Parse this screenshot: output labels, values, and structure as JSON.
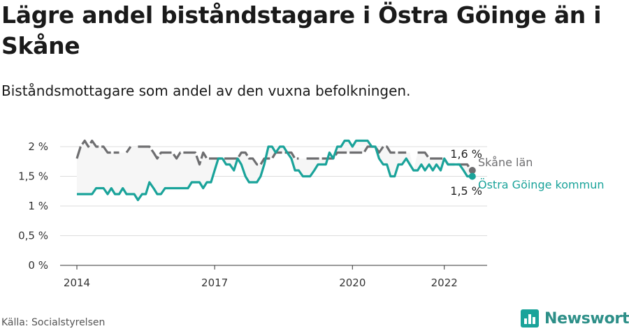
{
  "header": {
    "title": "Lägre andel biståndstagare i Östra Göinge än i Skåne",
    "subtitle": "Biståndsmottagare som andel av den vuxna befolkningen."
  },
  "footer": {
    "source": "Källa: Socialstyrelsen",
    "brand": "Newsworthy",
    "brand_icon": "bar-chart-icon"
  },
  "colors": {
    "skane": "#6e6e70",
    "gainge": "#1aa39a",
    "grid": "#dddddd",
    "band": "#f6f6f6"
  },
  "chart_data": {
    "type": "line",
    "x_unit": "year",
    "xlim": [
      2014,
      2022.75
    ],
    "ylim": [
      0,
      2
    ],
    "y_ticks": [
      "0 %",
      "0,5 %",
      "1 %",
      "1,5 %",
      "2 %"
    ],
    "y_tick_values": [
      0,
      0.5,
      1,
      1.5,
      2
    ],
    "x_ticks": [
      "2014",
      "2017",
      "2020",
      "2022"
    ],
    "x_tick_values": [
      2014,
      2017,
      2020,
      2022
    ],
    "series": [
      {
        "name": "Skåne län",
        "end_label": "1,6 %",
        "color": "#6e6e70",
        "dashed": true,
        "points": [
          [
            2014.0,
            1.8
          ],
          [
            2014.08,
            2.0
          ],
          [
            2014.17,
            2.1
          ],
          [
            2014.25,
            2.0
          ],
          [
            2014.33,
            2.1
          ],
          [
            2014.42,
            2.0
          ],
          [
            2014.5,
            2.0
          ],
          [
            2014.58,
            2.0
          ],
          [
            2014.67,
            1.9
          ],
          [
            2014.75,
            1.9
          ],
          [
            2014.83,
            1.9
          ],
          [
            2014.92,
            1.9
          ],
          [
            2015.0,
            null
          ],
          [
            2015.08,
            1.9
          ],
          [
            2015.17,
            2.0
          ],
          [
            2015.25,
            null
          ],
          [
            2015.33,
            2.0
          ],
          [
            2015.42,
            2.0
          ],
          [
            2015.5,
            2.0
          ],
          [
            2015.58,
            2.0
          ],
          [
            2015.67,
            1.9
          ],
          [
            2015.75,
            1.8
          ],
          [
            2015.83,
            1.9
          ],
          [
            2015.92,
            1.9
          ],
          [
            2016.0,
            1.9
          ],
          [
            2016.08,
            1.9
          ],
          [
            2016.17,
            1.8
          ],
          [
            2016.25,
            1.9
          ],
          [
            2016.33,
            1.9
          ],
          [
            2016.42,
            1.9
          ],
          [
            2016.5,
            1.9
          ],
          [
            2016.58,
            1.9
          ],
          [
            2016.67,
            1.7
          ],
          [
            2016.75,
            1.9
          ],
          [
            2016.83,
            1.8
          ],
          [
            2016.92,
            1.8
          ],
          [
            2017.0,
            1.8
          ],
          [
            2017.08,
            1.8
          ],
          [
            2017.17,
            1.8
          ],
          [
            2017.25,
            1.8
          ],
          [
            2017.33,
            1.8
          ],
          [
            2017.42,
            1.8
          ],
          [
            2017.5,
            1.8
          ],
          [
            2017.58,
            1.9
          ],
          [
            2017.67,
            1.9
          ],
          [
            2017.75,
            1.8
          ],
          [
            2017.83,
            1.8
          ],
          [
            2017.92,
            1.7
          ],
          [
            2018.0,
            1.7
          ],
          [
            2018.08,
            1.8
          ],
          [
            2018.17,
            1.8
          ],
          [
            2018.25,
            1.8
          ],
          [
            2018.33,
            1.9
          ],
          [
            2018.42,
            1.9
          ],
          [
            2018.5,
            1.9
          ],
          [
            2018.58,
            1.9
          ],
          [
            2018.67,
            1.9
          ],
          [
            2018.75,
            1.8
          ],
          [
            2018.83,
            1.8
          ],
          [
            2018.92,
            null
          ],
          [
            2019.0,
            1.8
          ],
          [
            2019.08,
            1.8
          ],
          [
            2019.17,
            1.8
          ],
          [
            2019.25,
            1.8
          ],
          [
            2019.33,
            1.8
          ],
          [
            2019.42,
            1.8
          ],
          [
            2019.5,
            1.8
          ],
          [
            2019.58,
            1.8
          ],
          [
            2019.67,
            1.9
          ],
          [
            2019.75,
            1.9
          ],
          [
            2019.83,
            1.9
          ],
          [
            2019.92,
            1.9
          ],
          [
            2020.0,
            1.9
          ],
          [
            2020.08,
            1.9
          ],
          [
            2020.17,
            1.9
          ],
          [
            2020.25,
            1.9
          ],
          [
            2020.33,
            2.0
          ],
          [
            2020.42,
            2.0
          ],
          [
            2020.5,
            2.0
          ],
          [
            2020.58,
            1.9
          ],
          [
            2020.67,
            2.0
          ],
          [
            2020.75,
            2.0
          ],
          [
            2020.83,
            1.9
          ],
          [
            2020.92,
            1.9
          ],
          [
            2021.0,
            1.9
          ],
          [
            2021.08,
            1.9
          ],
          [
            2021.17,
            1.9
          ],
          [
            2021.25,
            null
          ],
          [
            2021.33,
            null
          ],
          [
            2021.42,
            1.9
          ],
          [
            2021.5,
            1.9
          ],
          [
            2021.58,
            1.9
          ],
          [
            2021.67,
            1.8
          ],
          [
            2021.75,
            1.8
          ],
          [
            2021.83,
            1.8
          ],
          [
            2021.92,
            1.8
          ],
          [
            2022.0,
            1.8
          ],
          [
            2022.08,
            1.7
          ],
          [
            2022.17,
            1.7
          ],
          [
            2022.25,
            1.7
          ],
          [
            2022.33,
            1.7
          ],
          [
            2022.42,
            1.7
          ],
          [
            2022.5,
            1.7
          ],
          [
            2022.58,
            1.6
          ]
        ]
      },
      {
        "name": "Östra Göinge kommun",
        "end_label": "1,5 %",
        "color": "#1aa39a",
        "dashed": false,
        "points": [
          [
            2014.0,
            1.2
          ],
          [
            2014.08,
            1.2
          ],
          [
            2014.17,
            1.2
          ],
          [
            2014.25,
            1.2
          ],
          [
            2014.33,
            1.2
          ],
          [
            2014.42,
            1.3
          ],
          [
            2014.5,
            1.3
          ],
          [
            2014.58,
            1.3
          ],
          [
            2014.67,
            1.2
          ],
          [
            2014.75,
            1.3
          ],
          [
            2014.83,
            1.2
          ],
          [
            2014.92,
            1.2
          ],
          [
            2015.0,
            1.3
          ],
          [
            2015.08,
            1.2
          ],
          [
            2015.17,
            1.2
          ],
          [
            2015.25,
            1.2
          ],
          [
            2015.33,
            1.1
          ],
          [
            2015.42,
            1.2
          ],
          [
            2015.5,
            1.2
          ],
          [
            2015.58,
            1.4
          ],
          [
            2015.67,
            1.3
          ],
          [
            2015.75,
            1.2
          ],
          [
            2015.83,
            1.2
          ],
          [
            2015.92,
            1.3
          ],
          [
            2016.0,
            1.3
          ],
          [
            2016.08,
            1.3
          ],
          [
            2016.17,
            1.3
          ],
          [
            2016.25,
            1.3
          ],
          [
            2016.33,
            1.3
          ],
          [
            2016.42,
            1.3
          ],
          [
            2016.5,
            1.4
          ],
          [
            2016.58,
            1.4
          ],
          [
            2016.67,
            1.4
          ],
          [
            2016.75,
            1.3
          ],
          [
            2016.83,
            1.4
          ],
          [
            2016.92,
            1.4
          ],
          [
            2017.0,
            1.6
          ],
          [
            2017.08,
            1.8
          ],
          [
            2017.17,
            1.8
          ],
          [
            2017.25,
            1.7
          ],
          [
            2017.33,
            1.7
          ],
          [
            2017.42,
            1.6
          ],
          [
            2017.5,
            1.8
          ],
          [
            2017.58,
            1.7
          ],
          [
            2017.67,
            1.5
          ],
          [
            2017.75,
            1.4
          ],
          [
            2017.83,
            1.4
          ],
          [
            2017.92,
            1.4
          ],
          [
            2018.0,
            1.5
          ],
          [
            2018.08,
            1.7
          ],
          [
            2018.17,
            2.0
          ],
          [
            2018.25,
            2.0
          ],
          [
            2018.33,
            1.9
          ],
          [
            2018.42,
            2.0
          ],
          [
            2018.5,
            2.0
          ],
          [
            2018.58,
            1.9
          ],
          [
            2018.67,
            1.8
          ],
          [
            2018.75,
            1.6
          ],
          [
            2018.83,
            1.6
          ],
          [
            2018.92,
            1.5
          ],
          [
            2019.0,
            1.5
          ],
          [
            2019.08,
            1.5
          ],
          [
            2019.17,
            1.6
          ],
          [
            2019.25,
            1.7
          ],
          [
            2019.33,
            1.7
          ],
          [
            2019.42,
            1.7
          ],
          [
            2019.5,
            1.9
          ],
          [
            2019.58,
            1.8
          ],
          [
            2019.67,
            2.0
          ],
          [
            2019.75,
            2.0
          ],
          [
            2019.83,
            2.1
          ],
          [
            2019.92,
            2.1
          ],
          [
            2020.0,
            2.0
          ],
          [
            2020.08,
            2.1
          ],
          [
            2020.17,
            2.1
          ],
          [
            2020.25,
            2.1
          ],
          [
            2020.33,
            2.1
          ],
          [
            2020.42,
            2.0
          ],
          [
            2020.5,
            2.0
          ],
          [
            2020.58,
            1.8
          ],
          [
            2020.67,
            1.7
          ],
          [
            2020.75,
            1.7
          ],
          [
            2020.83,
            1.5
          ],
          [
            2020.92,
            1.5
          ],
          [
            2021.0,
            1.7
          ],
          [
            2021.08,
            1.7
          ],
          [
            2021.17,
            1.8
          ],
          [
            2021.25,
            1.7
          ],
          [
            2021.33,
            1.6
          ],
          [
            2021.42,
            1.6
          ],
          [
            2021.5,
            1.7
          ],
          [
            2021.58,
            1.6
          ],
          [
            2021.67,
            1.7
          ],
          [
            2021.75,
            1.6
          ],
          [
            2021.83,
            1.7
          ],
          [
            2021.92,
            1.6
          ],
          [
            2022.0,
            1.8
          ],
          [
            2022.08,
            1.7
          ],
          [
            2022.17,
            1.7
          ],
          [
            2022.25,
            1.7
          ],
          [
            2022.33,
            1.7
          ],
          [
            2022.42,
            1.6
          ],
          [
            2022.5,
            1.5
          ],
          [
            2022.58,
            1.5
          ]
        ]
      }
    ],
    "grid": true,
    "band_between_series": true
  }
}
